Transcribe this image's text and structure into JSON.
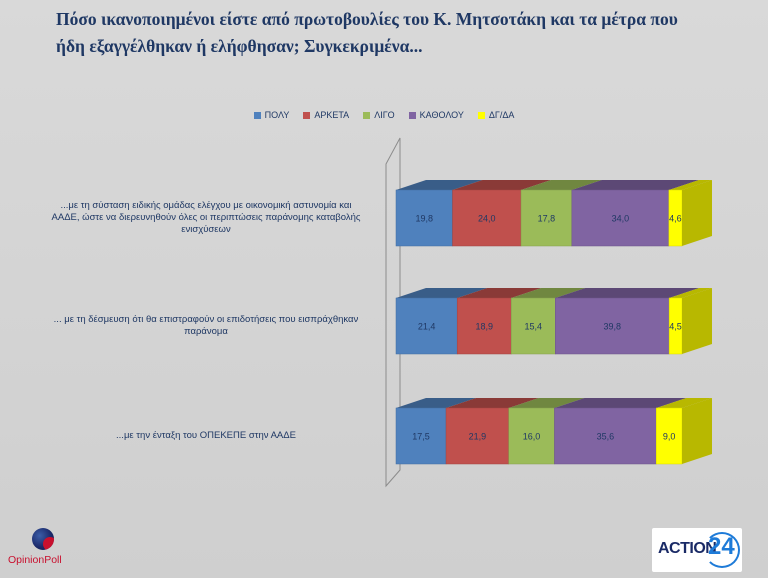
{
  "title_line1": "Πόσο ικανοποιημένοι είστε από πρωτοβουλίες του Κ. Μητσοτάκη και τα μέτρα που",
  "title_line2": "ήδη εξαγγέλθηκαν ή ελήφθησαν; Συγκεκριμένα...",
  "chart_data": {
    "type": "bar",
    "orientation": "horizontal",
    "stacked": true,
    "percent_stacked": true,
    "title": "",
    "xlabel": "",
    "ylabel": "",
    "legend_position": "top",
    "grid": false,
    "categories": [
      "...με τη σύσταση ειδικής ομάδας ελέγχου με οικονομική αστυνομία και ΑΑΔΕ, ώστε να διερευνηθούν όλες οι περιπτώσεις παράνομης καταβολής ενισχύσεων",
      "... με τη δέσμευση ότι θα επιστραφούν οι επιδοτήσεις που εισπράχθηκαν παράνομα",
      "...με την ένταξη του ΟΠΕΚΕΠΕ στην ΑΑΔΕ"
    ],
    "category_lines": [
      [
        "...με τη σύσταση ειδικής ομάδας ελέγχου με οικονομική αστυνομία και",
        "ΑΑΔΕ, ώστε να διερευνηθούν όλες οι περιπτώσεις παράνομης καταβολής",
        "ενισχύσεων"
      ],
      [
        "... με τη δέσμευση ότι θα επιστραφούν οι επιδοτήσεις που εισπράχθηκαν",
        "παράνομα"
      ],
      [
        "...με την ένταξη του ΟΠΕΚΕΠΕ στην ΑΑΔΕ"
      ]
    ],
    "series": [
      {
        "name": "ΠΟΛΥ",
        "color": "#4f81bd",
        "values": [
          19.8,
          21.4,
          17.5
        ],
        "labels": [
          "19,8",
          "21,4",
          "17,5"
        ]
      },
      {
        "name": "ΑΡΚΕΤΑ",
        "color": "#c0504d",
        "values": [
          24.0,
          18.9,
          21.9
        ],
        "labels": [
          "24,0",
          "18,9",
          "21,9"
        ]
      },
      {
        "name": "ΛΙΓΟ",
        "color": "#9bbb59",
        "values": [
          17.8,
          15.4,
          16.0
        ],
        "labels": [
          "17,8",
          "15,4",
          "16,0"
        ]
      },
      {
        "name": "ΚΑΘΟΛΟΥ",
        "color": "#8064a2",
        "values": [
          34.0,
          39.8,
          35.6
        ],
        "labels": [
          "34,0",
          "39,8",
          "35,6"
        ]
      },
      {
        "name": "ΔΓ/ΔΑ",
        "color": "#ffff00",
        "values": [
          4.6,
          4.5,
          9.0
        ],
        "labels": [
          "4,6",
          "4,5",
          "9,0"
        ]
      }
    ]
  },
  "logos": {
    "left": {
      "part1": "Opinion",
      "part2": "Poll"
    },
    "right": {
      "part1": "ACTION",
      "part2": "24"
    }
  }
}
